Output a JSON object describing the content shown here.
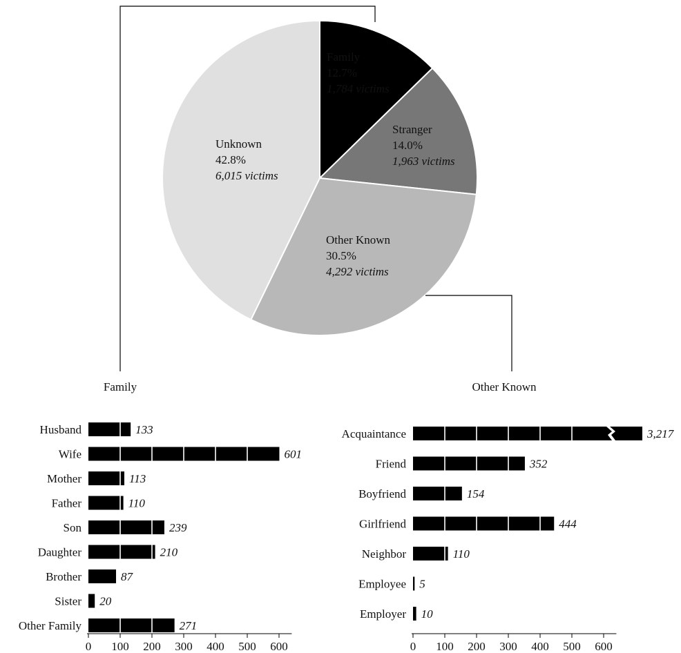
{
  "colors": {
    "family": "#000000",
    "stranger": "#777777",
    "other_known": "#b8b8b8",
    "unknown": "#e0e0e0",
    "bar": "#000000",
    "text_on_dark": "#ffffff",
    "text_on_light": "#111111"
  },
  "chart_data": [
    {
      "type": "pie",
      "title": "",
      "slices": [
        {
          "label": "Family",
          "percent": "12.7%",
          "victims_text": "1,784 victims",
          "value": 1784
        },
        {
          "label": "Stranger",
          "percent": "14.0%",
          "victims_text": "1,963 victims",
          "value": 1963
        },
        {
          "label": "Other Known",
          "percent": "30.5%",
          "victims_text": "4,292 victims",
          "value": 4292
        },
        {
          "label": "Unknown",
          "percent": "42.8%",
          "victims_text": "6,015 victims",
          "value": 6015
        }
      ]
    },
    {
      "type": "bar",
      "orientation": "horizontal",
      "title": "Family",
      "categories": [
        "Husband",
        "Wife",
        "Mother",
        "Father",
        "Son",
        "Daughter",
        "Brother",
        "Sister",
        "Other Family"
      ],
      "values": [
        133,
        601,
        113,
        110,
        239,
        210,
        87,
        20,
        271
      ],
      "value_labels": [
        "133",
        "601",
        "113",
        "110",
        "239",
        "210",
        "87",
        "20",
        "271"
      ],
      "xlim": [
        0,
        640
      ],
      "xticks": [
        "0",
        "100",
        "200",
        "300",
        "400",
        "500",
        "600"
      ]
    },
    {
      "type": "bar",
      "orientation": "horizontal",
      "title": "Other Known",
      "categories": [
        "Acquaintance",
        "Friend",
        "Boyfriend",
        "Girlfriend",
        "Neighbor",
        "Employee",
        "Employer"
      ],
      "values": [
        3217,
        352,
        154,
        444,
        110,
        5,
        10
      ],
      "value_labels": [
        "3,217",
        "352",
        "154",
        "444",
        "110",
        "5",
        "10"
      ],
      "axis_break": "Acquaintance",
      "xlim": [
        0,
        640
      ],
      "xticks": [
        "0",
        "100",
        "200",
        "300",
        "400",
        "500",
        "600"
      ]
    }
  ]
}
